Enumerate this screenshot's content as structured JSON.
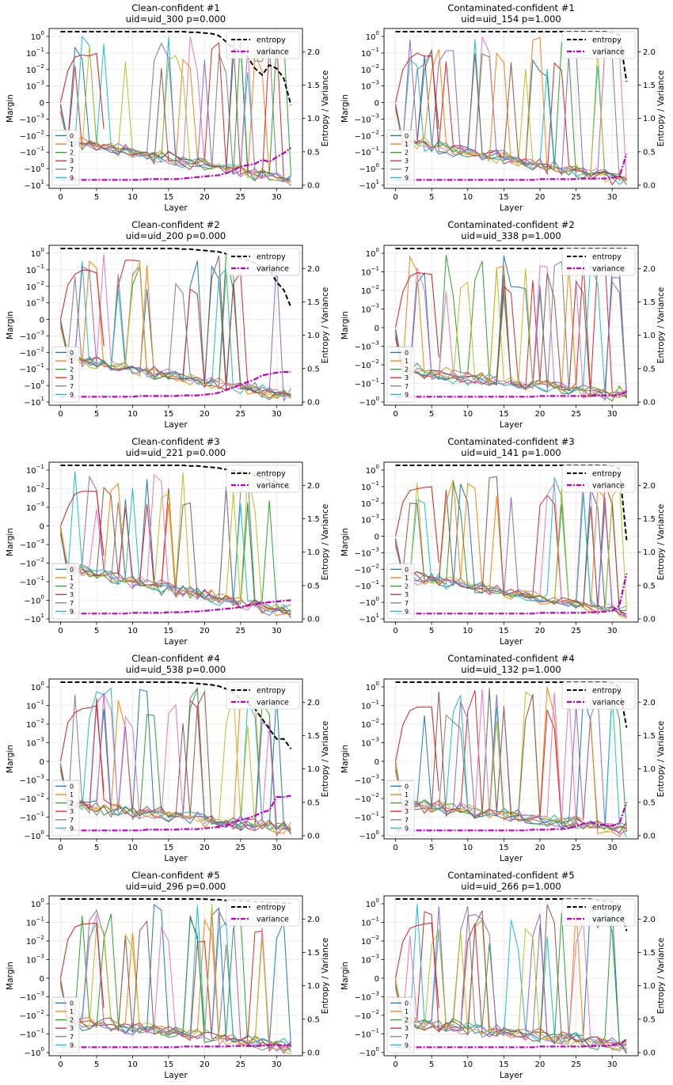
{
  "figure": {
    "series_colors": {
      "0": "#1f77b4",
      "1": "#ff7f0e",
      "2": "#2ca02c",
      "3": "#d62728",
      "7": "#7f7f7f",
      "9": "#17becf"
    },
    "extra_colors": [
      "#e377c2",
      "#9467bd",
      "#bcbd22",
      "#8c564b"
    ],
    "entropy_color": "#000000",
    "variance_color": "#bf00bf"
  },
  "chart_data": [
    {
      "type": "line",
      "title": "Clean-confident #1",
      "subtitle": "uid=uid_300   p=0.000",
      "xlabel": "Layer",
      "ylabel": "Margin",
      "y2label": "Entropy / Variance",
      "xlim": [
        0,
        32
      ],
      "x_ticks": [
        0,
        5,
        10,
        15,
        20,
        25,
        30
      ],
      "y_ticks": [
        "10^0",
        "10^-1",
        "10^-2",
        "10^-3",
        "0",
        "-10^-3",
        "-10^-2",
        "-10^-1",
        "-10^0",
        "-10^1"
      ],
      "y_scale": "symlog",
      "y2_ticks": [
        0.0,
        0.5,
        1.0,
        1.5,
        2.0
      ],
      "y2lim": [
        0,
        2.3
      ],
      "legend_lines": [
        "0",
        "1",
        "2",
        "3",
        "7",
        "9"
      ],
      "legend_lines_position": "lower-left",
      "legend_stats": [
        "entropy",
        "variance"
      ],
      "legend_stats_position": "upper-right",
      "entropy": [
        2.3,
        2.3,
        2.3,
        2.3,
        2.3,
        2.3,
        2.3,
        2.3,
        2.3,
        2.3,
        2.3,
        2.3,
        2.3,
        2.3,
        2.3,
        2.3,
        2.3,
        2.3,
        2.29,
        2.29,
        2.28,
        2.27,
        2.24,
        2.15,
        2.05,
        2.0,
        1.92,
        1.75,
        1.65,
        1.8,
        1.75,
        1.6,
        1.2
      ],
      "variance": [
        0.08,
        0.08,
        0.08,
        0.08,
        0.08,
        0.08,
        0.08,
        0.08,
        0.08,
        0.08,
        0.08,
        0.08,
        0.09,
        0.09,
        0.09,
        0.09,
        0.09,
        0.1,
        0.11,
        0.12,
        0.13,
        0.14,
        0.15,
        0.18,
        0.22,
        0.28,
        0.3,
        0.32,
        0.38,
        0.35,
        0.42,
        0.48,
        0.56
      ]
    },
    {
      "type": "line",
      "title": "Contaminated-confident #1",
      "subtitle": "uid=uid_154   p=1.000",
      "xlabel": "Layer",
      "ylabel": "Margin",
      "y2label": "Entropy / Variance",
      "xlim": [
        0,
        32
      ],
      "x_ticks": [
        0,
        5,
        10,
        15,
        20,
        25,
        30
      ],
      "y_ticks": [
        "10^0",
        "10^-1",
        "10^-2",
        "10^-3",
        "0",
        "-10^-3",
        "-10^-2",
        "-10^-1",
        "-10^0",
        "-10^1"
      ],
      "y_scale": "symlog",
      "y2_ticks": [
        0.0,
        0.5,
        1.0,
        1.5,
        2.0
      ],
      "y2lim": [
        0,
        2.3
      ],
      "legend_lines": [
        "0",
        "1",
        "2",
        "3",
        "7",
        "9"
      ],
      "legend_lines_position": "lower-left",
      "legend_stats": [
        "entropy",
        "variance"
      ],
      "legend_stats_position": "upper-right",
      "entropy": [
        2.3,
        2.3,
        2.3,
        2.3,
        2.3,
        2.3,
        2.3,
        2.3,
        2.3,
        2.3,
        2.3,
        2.3,
        2.3,
        2.3,
        2.3,
        2.3,
        2.3,
        2.3,
        2.3,
        2.3,
        2.3,
        2.3,
        2.3,
        2.3,
        2.3,
        2.3,
        2.3,
        2.3,
        2.3,
        2.3,
        2.29,
        2.25,
        1.55
      ],
      "variance": [
        0.08,
        0.08,
        0.08,
        0.08,
        0.08,
        0.08,
        0.08,
        0.08,
        0.08,
        0.08,
        0.08,
        0.08,
        0.08,
        0.08,
        0.08,
        0.08,
        0.08,
        0.08,
        0.08,
        0.08,
        0.09,
        0.09,
        0.09,
        0.09,
        0.09,
        0.09,
        0.1,
        0.1,
        0.1,
        0.1,
        0.11,
        0.13,
        0.47
      ]
    },
    {
      "type": "line",
      "title": "Clean-confident #2",
      "subtitle": "uid=uid_200   p=0.000",
      "xlabel": "Layer",
      "ylabel": "Margin",
      "y2label": "Entropy / Variance",
      "xlim": [
        0,
        32
      ],
      "x_ticks": [
        0,
        5,
        10,
        15,
        20,
        25,
        30
      ],
      "y_ticks": [
        "10^0",
        "10^-1",
        "10^-2",
        "10^-3",
        "0",
        "-10^-3",
        "-10^-2",
        "-10^-1",
        "-10^0",
        "-10^1"
      ],
      "y_scale": "symlog",
      "y2_ticks": [
        0.0,
        0.5,
        1.0,
        1.5,
        2.0
      ],
      "y2lim": [
        0,
        2.3
      ],
      "legend_lines": [
        "0",
        "1",
        "2",
        "3",
        "7",
        "9"
      ],
      "legend_lines_position": "lower-left",
      "legend_stats": [
        "entropy",
        "variance"
      ],
      "legend_stats_position": "upper-right",
      "entropy": [
        2.3,
        2.3,
        2.3,
        2.3,
        2.3,
        2.3,
        2.3,
        2.3,
        2.3,
        2.3,
        2.3,
        2.3,
        2.3,
        2.3,
        2.3,
        2.3,
        2.3,
        2.29,
        2.29,
        2.28,
        2.27,
        2.26,
        2.25,
        2.22,
        2.18,
        2.15,
        2.12,
        2.08,
        2.02,
        1.98,
        1.8,
        1.68,
        1.42
      ],
      "variance": [
        0.08,
        0.08,
        0.08,
        0.08,
        0.08,
        0.08,
        0.08,
        0.08,
        0.08,
        0.08,
        0.08,
        0.09,
        0.09,
        0.09,
        0.09,
        0.09,
        0.09,
        0.1,
        0.1,
        0.1,
        0.11,
        0.12,
        0.14,
        0.18,
        0.22,
        0.26,
        0.3,
        0.34,
        0.4,
        0.42,
        0.44,
        0.45,
        0.45
      ]
    },
    {
      "type": "line",
      "title": "Contaminated-confident #2",
      "subtitle": "uid=uid_338   p=1.000",
      "xlabel": "Layer",
      "ylabel": "Margin",
      "y2label": "Entropy / Variance",
      "xlim": [
        0,
        32
      ],
      "x_ticks": [
        0,
        5,
        10,
        15,
        20,
        25,
        30
      ],
      "y_ticks": [
        "10^0",
        "10^-1",
        "10^-2",
        "10^-3",
        "0",
        "-10^-3",
        "-10^-2",
        "-10^-1",
        "-10^0"
      ],
      "y_scale": "symlog",
      "y2_ticks": [
        0.0,
        0.5,
        1.0,
        1.5,
        2.0
      ],
      "y2lim": [
        0,
        2.3
      ],
      "legend_lines": [
        "0",
        "1",
        "2",
        "3",
        "7",
        "9"
      ],
      "legend_lines_position": "lower-left",
      "legend_stats": [
        "entropy",
        "variance"
      ],
      "legend_stats_position": "upper-right",
      "entropy": [
        2.3,
        2.3,
        2.3,
        2.3,
        2.3,
        2.3,
        2.3,
        2.3,
        2.3,
        2.3,
        2.3,
        2.3,
        2.3,
        2.3,
        2.3,
        2.3,
        2.3,
        2.3,
        2.3,
        2.3,
        2.3,
        2.3,
        2.3,
        2.3,
        2.3,
        2.3,
        2.3,
        2.3,
        2.3,
        2.3,
        2.3,
        2.3,
        2.3
      ],
      "variance": [
        0.08,
        0.08,
        0.08,
        0.08,
        0.08,
        0.08,
        0.08,
        0.08,
        0.08,
        0.08,
        0.08,
        0.08,
        0.08,
        0.08,
        0.08,
        0.08,
        0.08,
        0.08,
        0.08,
        0.08,
        0.09,
        0.09,
        0.09,
        0.09,
        0.09,
        0.09,
        0.09,
        0.09,
        0.1,
        0.1,
        0.1,
        0.1,
        0.16
      ]
    },
    {
      "type": "line",
      "title": "Clean-confident #3",
      "subtitle": "uid=uid_221   p=0.000",
      "xlabel": "Layer",
      "ylabel": "Margin",
      "y2label": "Entropy / Variance",
      "xlim": [
        0,
        32
      ],
      "x_ticks": [
        0,
        5,
        10,
        15,
        20,
        25,
        30
      ],
      "y_ticks": [
        "10^-1",
        "10^-2",
        "10^-3",
        "0",
        "-10^-3",
        "-10^-2",
        "-10^-1",
        "-10^0",
        "-10^1"
      ],
      "y_scale": "symlog",
      "y2_ticks": [
        0.0,
        0.5,
        1.0,
        1.5,
        2.0
      ],
      "y2lim": [
        0,
        2.3
      ],
      "legend_lines": [
        "0",
        "1",
        "2",
        "3",
        "7",
        "9"
      ],
      "legend_lines_position": "lower-left",
      "legend_stats": [
        "entropy",
        "variance"
      ],
      "legend_stats_position": "upper-right",
      "entropy": [
        2.3,
        2.3,
        2.3,
        2.3,
        2.3,
        2.3,
        2.3,
        2.3,
        2.3,
        2.3,
        2.3,
        2.3,
        2.3,
        2.3,
        2.3,
        2.3,
        2.3,
        2.3,
        2.29,
        2.29,
        2.28,
        2.27,
        2.26,
        2.24,
        2.22,
        2.2,
        2.18,
        2.15,
        2.12,
        2.08,
        2.05,
        2.0,
        1.95
      ],
      "variance": [
        0.08,
        0.08,
        0.08,
        0.08,
        0.08,
        0.08,
        0.08,
        0.08,
        0.08,
        0.08,
        0.09,
        0.09,
        0.09,
        0.09,
        0.09,
        0.1,
        0.1,
        0.1,
        0.11,
        0.11,
        0.12,
        0.13,
        0.14,
        0.15,
        0.16,
        0.18,
        0.2,
        0.22,
        0.24,
        0.25,
        0.26,
        0.27,
        0.28
      ]
    },
    {
      "type": "line",
      "title": "Contaminated-confident #3",
      "subtitle": "uid=uid_141   p=1.000",
      "xlabel": "Layer",
      "ylabel": "Margin",
      "y2label": "Entropy / Variance",
      "xlim": [
        0,
        32
      ],
      "x_ticks": [
        0,
        5,
        10,
        15,
        20,
        25,
        30
      ],
      "y_ticks": [
        "10^0",
        "10^-1",
        "10^-2",
        "10^-3",
        "0",
        "-10^-3",
        "-10^-2",
        "-10^-1",
        "-10^0",
        "-10^1"
      ],
      "y_scale": "symlog",
      "y2_ticks": [
        0.0,
        0.5,
        1.0,
        1.5,
        2.0
      ],
      "y2lim": [
        0,
        2.3
      ],
      "legend_lines": [
        "0",
        "1",
        "2",
        "3",
        "7",
        "9"
      ],
      "legend_lines_position": "lower-left",
      "legend_stats": [
        "entropy",
        "variance"
      ],
      "legend_stats_position": "upper-right",
      "entropy": [
        2.3,
        2.3,
        2.3,
        2.3,
        2.3,
        2.3,
        2.3,
        2.3,
        2.3,
        2.3,
        2.3,
        2.3,
        2.3,
        2.3,
        2.3,
        2.3,
        2.3,
        2.3,
        2.3,
        2.3,
        2.3,
        2.3,
        2.3,
        2.3,
        2.3,
        2.3,
        2.3,
        2.3,
        2.3,
        2.3,
        2.29,
        2.25,
        1.18
      ],
      "variance": [
        0.08,
        0.08,
        0.08,
        0.08,
        0.08,
        0.08,
        0.08,
        0.08,
        0.08,
        0.08,
        0.08,
        0.08,
        0.08,
        0.08,
        0.08,
        0.08,
        0.08,
        0.08,
        0.08,
        0.08,
        0.09,
        0.09,
        0.09,
        0.09,
        0.09,
        0.09,
        0.09,
        0.1,
        0.1,
        0.11,
        0.12,
        0.2,
        0.68
      ]
    },
    {
      "type": "line",
      "title": "Clean-confident #4",
      "subtitle": "uid=uid_538   p=0.000",
      "xlabel": "Layer",
      "ylabel": "Margin",
      "y2label": "Entropy / Variance",
      "xlim": [
        0,
        32
      ],
      "x_ticks": [
        0,
        5,
        10,
        15,
        20,
        25,
        30
      ],
      "y_ticks": [
        "10^0",
        "10^-1",
        "10^-2",
        "10^-3",
        "0",
        "-10^-3",
        "-10^-2",
        "-10^-1",
        "-10^0"
      ],
      "y_scale": "symlog",
      "y2_ticks": [
        0.0,
        0.5,
        1.0,
        1.5,
        2.0
      ],
      "y2lim": [
        0,
        2.3
      ],
      "legend_lines": [
        "0",
        "1",
        "2",
        "3",
        "7",
        "9"
      ],
      "legend_lines_position": "lower-left",
      "legend_stats": [
        "entropy",
        "variance"
      ],
      "legend_stats_position": "upper-right",
      "entropy": [
        2.3,
        2.3,
        2.3,
        2.3,
        2.3,
        2.3,
        2.3,
        2.3,
        2.3,
        2.3,
        2.3,
        2.3,
        2.3,
        2.3,
        2.3,
        2.3,
        2.3,
        2.29,
        2.29,
        2.28,
        2.27,
        2.26,
        2.24,
        2.2,
        2.14,
        2.05,
        1.98,
        1.9,
        1.75,
        1.6,
        1.45,
        1.45,
        1.3
      ],
      "variance": [
        0.08,
        0.08,
        0.08,
        0.08,
        0.08,
        0.08,
        0.08,
        0.08,
        0.08,
        0.08,
        0.08,
        0.08,
        0.09,
        0.09,
        0.09,
        0.09,
        0.09,
        0.1,
        0.1,
        0.1,
        0.11,
        0.12,
        0.13,
        0.15,
        0.2,
        0.24,
        0.26,
        0.3,
        0.35,
        0.38,
        0.58,
        0.58,
        0.6
      ]
    },
    {
      "type": "line",
      "title": "Contaminated-confident #4",
      "subtitle": "uid=uid_132   p=1.000",
      "xlabel": "Layer",
      "ylabel": "Margin",
      "y2label": "Entropy / Variance",
      "xlim": [
        0,
        32
      ],
      "x_ticks": [
        0,
        5,
        10,
        15,
        20,
        25,
        30
      ],
      "y_ticks": [
        "10^0",
        "10^-1",
        "10^-2",
        "10^-3",
        "0",
        "-10^-3",
        "-10^-2",
        "-10^-1",
        "-10^0"
      ],
      "y_scale": "symlog",
      "y2_ticks": [
        0.0,
        0.5,
        1.0,
        1.5,
        2.0
      ],
      "y2lim": [
        0,
        2.3
      ],
      "legend_lines": [
        "0",
        "1",
        "2",
        "3",
        "7",
        "9"
      ],
      "legend_lines_position": "lower-left",
      "legend_stats": [
        "entropy",
        "variance"
      ],
      "legend_stats_position": "upper-right",
      "entropy": [
        2.3,
        2.3,
        2.3,
        2.3,
        2.3,
        2.3,
        2.3,
        2.3,
        2.3,
        2.3,
        2.3,
        2.3,
        2.3,
        2.3,
        2.3,
        2.3,
        2.3,
        2.3,
        2.3,
        2.3,
        2.3,
        2.3,
        2.3,
        2.3,
        2.3,
        2.3,
        2.3,
        2.3,
        2.3,
        2.3,
        2.29,
        2.22,
        1.62
      ],
      "variance": [
        0.08,
        0.08,
        0.08,
        0.08,
        0.08,
        0.08,
        0.08,
        0.08,
        0.08,
        0.08,
        0.08,
        0.08,
        0.08,
        0.08,
        0.08,
        0.08,
        0.08,
        0.08,
        0.08,
        0.09,
        0.09,
        0.09,
        0.1,
        0.1,
        0.11,
        0.14,
        0.18,
        0.2,
        0.17,
        0.16,
        0.15,
        0.18,
        0.5
      ]
    },
    {
      "type": "line",
      "title": "Clean-confident #5",
      "subtitle": "uid=uid_296   p=0.000",
      "xlabel": "Layer",
      "ylabel": "Margin",
      "y2label": "Entropy / Variance",
      "xlim": [
        0,
        32
      ],
      "x_ticks": [
        0,
        5,
        10,
        15,
        20,
        25,
        30
      ],
      "y_ticks": [
        "10^0",
        "10^-1",
        "10^-2",
        "10^-3",
        "0",
        "-10^-3",
        "-10^-2",
        "-10^-1",
        "-10^0"
      ],
      "y_scale": "symlog",
      "y2_ticks": [
        0.0,
        0.5,
        1.0,
        1.5,
        2.0
      ],
      "y2lim": [
        0,
        2.3
      ],
      "legend_lines": [
        "0",
        "1",
        "2",
        "3",
        "7",
        "9"
      ],
      "legend_lines_position": "lower-left",
      "legend_stats": [
        "entropy",
        "variance"
      ],
      "legend_stats_position": "upper-right",
      "entropy": [
        2.3,
        2.3,
        2.3,
        2.3,
        2.3,
        2.3,
        2.3,
        2.3,
        2.3,
        2.3,
        2.3,
        2.3,
        2.3,
        2.3,
        2.3,
        2.3,
        2.3,
        2.3,
        2.3,
        2.3,
        2.3,
        2.29,
        2.29,
        2.28,
        2.28,
        2.27,
        2.27,
        2.26,
        2.26,
        2.25,
        2.25,
        2.24,
        2.24
      ],
      "variance": [
        0.08,
        0.08,
        0.08,
        0.08,
        0.08,
        0.08,
        0.08,
        0.08,
        0.08,
        0.08,
        0.08,
        0.08,
        0.08,
        0.08,
        0.08,
        0.08,
        0.08,
        0.09,
        0.09,
        0.09,
        0.09,
        0.09,
        0.09,
        0.09,
        0.1,
        0.1,
        0.1,
        0.1,
        0.1,
        0.11,
        0.11,
        0.11,
        0.11
      ]
    },
    {
      "type": "line",
      "title": "Contaminated-confident #5",
      "subtitle": "uid=uid_266   p=1.000",
      "xlabel": "Layer",
      "ylabel": "Margin",
      "y2label": "Entropy / Variance",
      "xlim": [
        0,
        32
      ],
      "x_ticks": [
        0,
        5,
        10,
        15,
        20,
        25,
        30
      ],
      "y_ticks": [
        "10^0",
        "10^-1",
        "10^-2",
        "10^-3",
        "0",
        "-10^-3",
        "-10^-2",
        "-10^-1",
        "-10^0"
      ],
      "y_scale": "symlog",
      "y2_ticks": [
        0.0,
        0.5,
        1.0,
        1.5,
        2.0
      ],
      "y2lim": [
        0,
        2.3
      ],
      "legend_lines": [
        "0",
        "1",
        "2",
        "3",
        "7",
        "9"
      ],
      "legend_lines_position": "lower-left",
      "legend_stats": [
        "entropy",
        "variance"
      ],
      "legend_stats_position": "upper-right",
      "entropy": [
        2.3,
        2.3,
        2.3,
        2.3,
        2.3,
        2.3,
        2.3,
        2.3,
        2.3,
        2.3,
        2.3,
        2.3,
        2.3,
        2.3,
        2.3,
        2.3,
        2.3,
        2.3,
        2.3,
        2.3,
        2.3,
        2.3,
        2.3,
        2.3,
        2.3,
        2.3,
        2.3,
        2.3,
        2.28,
        2.27,
        2.26,
        2.2,
        1.82
      ],
      "variance": [
        0.08,
        0.08,
        0.08,
        0.08,
        0.08,
        0.08,
        0.08,
        0.08,
        0.08,
        0.08,
        0.08,
        0.08,
        0.08,
        0.08,
        0.08,
        0.08,
        0.08,
        0.08,
        0.08,
        0.08,
        0.09,
        0.09,
        0.09,
        0.09,
        0.09,
        0.09,
        0.09,
        0.1,
        0.1,
        0.1,
        0.11,
        0.12,
        0.2
      ]
    }
  ]
}
